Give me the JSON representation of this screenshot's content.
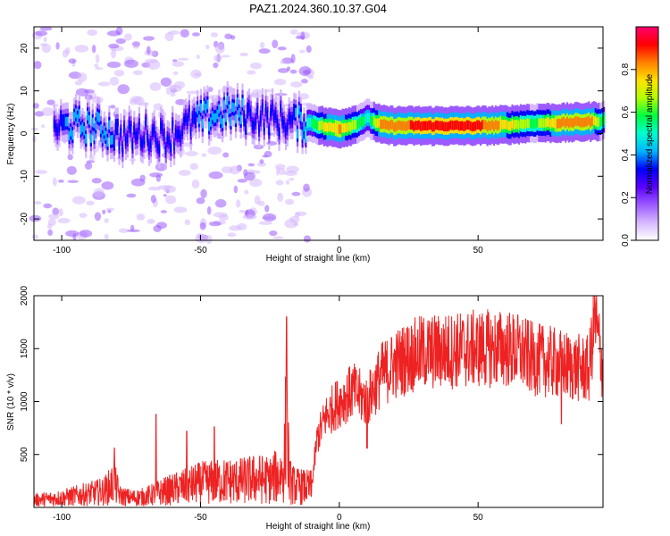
{
  "title": "PAZ1.2024.360.10.37.G04",
  "chart_data": [
    {
      "type": "heatmap",
      "xlabel": "Height of straight line (km)",
      "ylabel": "Frequency (Hz)",
      "xlim": [
        -110,
        95
      ],
      "ylim": [
        -25,
        25
      ],
      "xticks": [
        -100,
        -50,
        0,
        50
      ],
      "yticks": [
        20,
        10,
        0,
        -10,
        -20
      ],
      "colorbar": {
        "label": "Normalized spectral amplitude",
        "range": [
          0,
          1
        ],
        "ticks": [
          "0.0",
          "0.2",
          "0.4",
          "0.6",
          "0.8"
        ],
        "colors": [
          "#ffffff",
          "#d6b8ff",
          "#9b59ff",
          "#5a00ff",
          "#0000ff",
          "#00b4ff",
          "#00ffd0",
          "#00ff40",
          "#b4ff00",
          "#ffe100",
          "#ff8000",
          "#ff0000",
          "#ff0070"
        ]
      },
      "ridge": {
        "x": [
          -103,
          -95,
          -85,
          -78,
          -70,
          -62,
          -55,
          -48,
          -40,
          -30,
          -20,
          -13,
          -10,
          -5,
          0,
          5,
          10,
          15,
          20,
          30,
          40,
          50,
          60,
          70,
          80,
          90,
          95
        ],
        "y": [
          1.5,
          2,
          1,
          -1,
          0,
          -1,
          2,
          4,
          5,
          4,
          3,
          2.5,
          2.5,
          1.5,
          1.2,
          2,
          3.5,
          2,
          1.8,
          1.8,
          1.8,
          1.8,
          2,
          2.5,
          2.5,
          2.8,
          3
        ],
        "amplitude": [
          0.35,
          0.4,
          0.4,
          0.35,
          0.3,
          0.3,
          0.35,
          0.4,
          0.4,
          0.35,
          0.3,
          0.45,
          0.55,
          0.75,
          0.8,
          0.65,
          0.5,
          0.85,
          0.85,
          0.9,
          0.9,
          0.9,
          0.75,
          0.6,
          0.85,
          0.85,
          0.55
        ]
      }
    },
    {
      "type": "line",
      "xlabel": "Height of straight line (km)",
      "ylabel": "SNR (10 * v/v)",
      "xlim": [
        -110,
        95
      ],
      "ylim": [
        0,
        2000
      ],
      "xticks": [
        -100,
        -50,
        0,
        50
      ],
      "yticks": [
        500,
        1000,
        1500,
        2000
      ],
      "color": "#ee2222",
      "series": [
        {
          "x": [
            -110,
            -105,
            -100,
            -95,
            -90,
            -85,
            -81,
            -79,
            -75,
            -70,
            -65,
            -60,
            -55,
            -50,
            -45,
            -40,
            -35,
            -30,
            -25,
            -22,
            -20,
            -19,
            -18,
            -16,
            -12,
            -10,
            -8,
            -5,
            -2,
            0,
            5,
            10,
            15,
            20,
            25,
            30,
            35,
            40,
            45,
            50,
            55,
            60,
            65,
            70,
            75,
            80,
            85,
            90,
            92,
            95
          ],
          "y": [
            70,
            80,
            90,
            110,
            130,
            150,
            230,
            110,
            90,
            100,
            140,
            170,
            200,
            230,
            240,
            250,
            250,
            270,
            260,
            300,
            330,
            900,
            250,
            200,
            190,
            190,
            650,
            850,
            950,
            1000,
            1100,
            1000,
            1250,
            1350,
            1420,
            1460,
            1470,
            1480,
            1490,
            1500,
            1500,
            1500,
            1470,
            1400,
            1380,
            1350,
            1320,
            1300,
            1800,
            1300
          ],
          "spikes": [
            {
              "x": -81,
              "y": 560
            },
            {
              "x": -66,
              "y": 880
            },
            {
              "x": -55,
              "y": 720
            },
            {
              "x": -45,
              "y": 760
            },
            {
              "x": -19,
              "y": 1800
            },
            {
              "x": 10,
              "y": 560
            },
            {
              "x": 80,
              "y": 790
            },
            {
              "x": 92,
              "y": 2000
            }
          ]
        }
      ]
    }
  ]
}
